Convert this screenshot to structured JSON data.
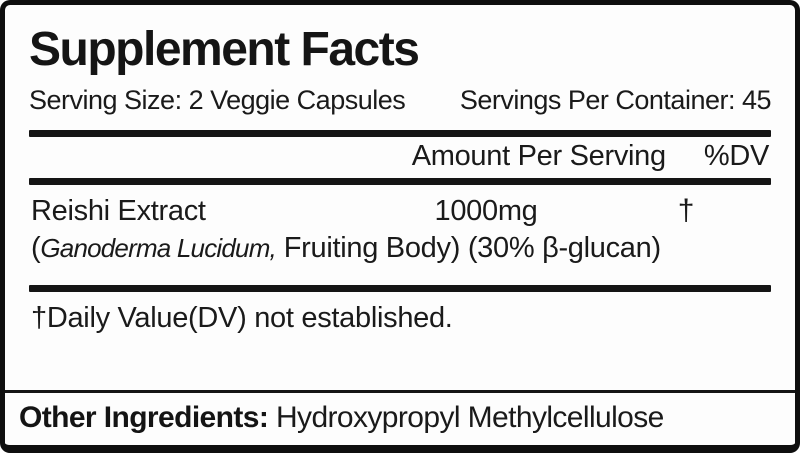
{
  "label": {
    "title": "Supplement Facts",
    "serving_size": "Serving Size: 2 Veggie Capsules",
    "servings_per_container": "Servings Per Container: 45",
    "header": {
      "amount_per_serving": "Amount Per Serving",
      "dv": "%DV"
    },
    "ingredients": [
      {
        "name": "Reishi Extract",
        "amount": "1000mg",
        "dv": "†",
        "detail_open": "(",
        "detail_italic": "Ganoderma Lucidum,",
        "detail_rest": " Fruiting Body) (30% β-glucan)"
      }
    ],
    "footnote": "†Daily Value(DV) not established.",
    "other_ingredients_label": "Other Ingredients:",
    "other_ingredients_value": "Hydroxypropyl Methylcellulose",
    "colors": {
      "border": "#0f0f0f",
      "rule": "#151515",
      "text": "#1a1a1a",
      "background": "#fdfdfd"
    }
  }
}
